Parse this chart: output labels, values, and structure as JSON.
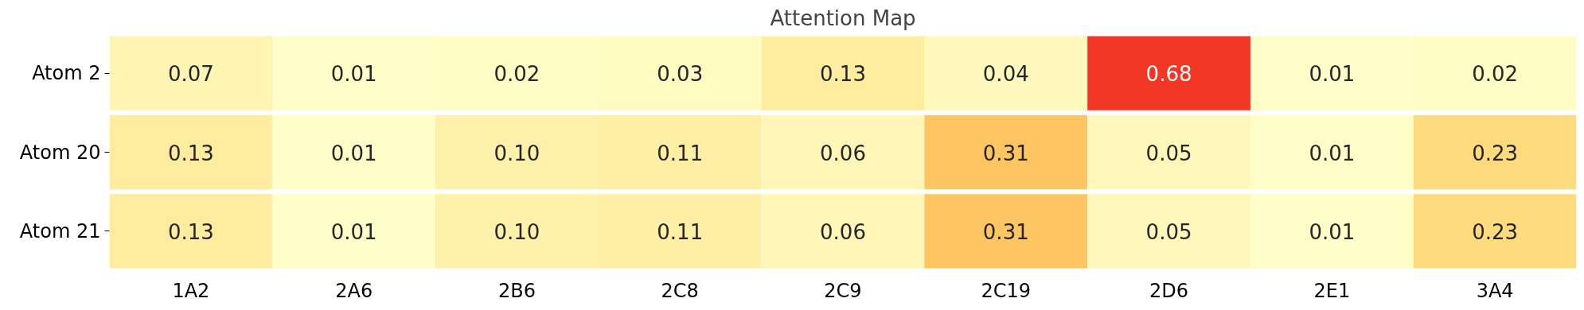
{
  "chart_data": {
    "type": "heatmap",
    "title": "Attention Map",
    "categories": [
      "1A2",
      "2A6",
      "2B6",
      "2C8",
      "2C9",
      "2C19",
      "2D6",
      "2E1",
      "3A4"
    ],
    "y_categories": [
      "Atom 2",
      "Atom 20",
      "Atom 21"
    ],
    "cells": [
      [
        0.07,
        0.01,
        0.02,
        0.03,
        0.13,
        0.04,
        0.68,
        0.01,
        0.02
      ],
      [
        0.13,
        0.01,
        0.1,
        0.11,
        0.06,
        0.31,
        0.05,
        0.01,
        0.23
      ],
      [
        0.13,
        0.01,
        0.1,
        0.11,
        0.06,
        0.31,
        0.05,
        0.01,
        0.23
      ]
    ],
    "cell_labels": [
      [
        "0.07",
        "0.01",
        "0.02",
        "0.03",
        "0.13",
        "0.04",
        "0.68",
        "0.01",
        "0.02"
      ],
      [
        "0.13",
        "0.01",
        "0.10",
        "0.11",
        "0.06",
        "0.31",
        "0.05",
        "0.01",
        "0.23"
      ],
      [
        "0.13",
        "0.01",
        "0.10",
        "0.11",
        "0.06",
        "0.31",
        "0.05",
        "0.01",
        "0.23"
      ]
    ]
  }
}
